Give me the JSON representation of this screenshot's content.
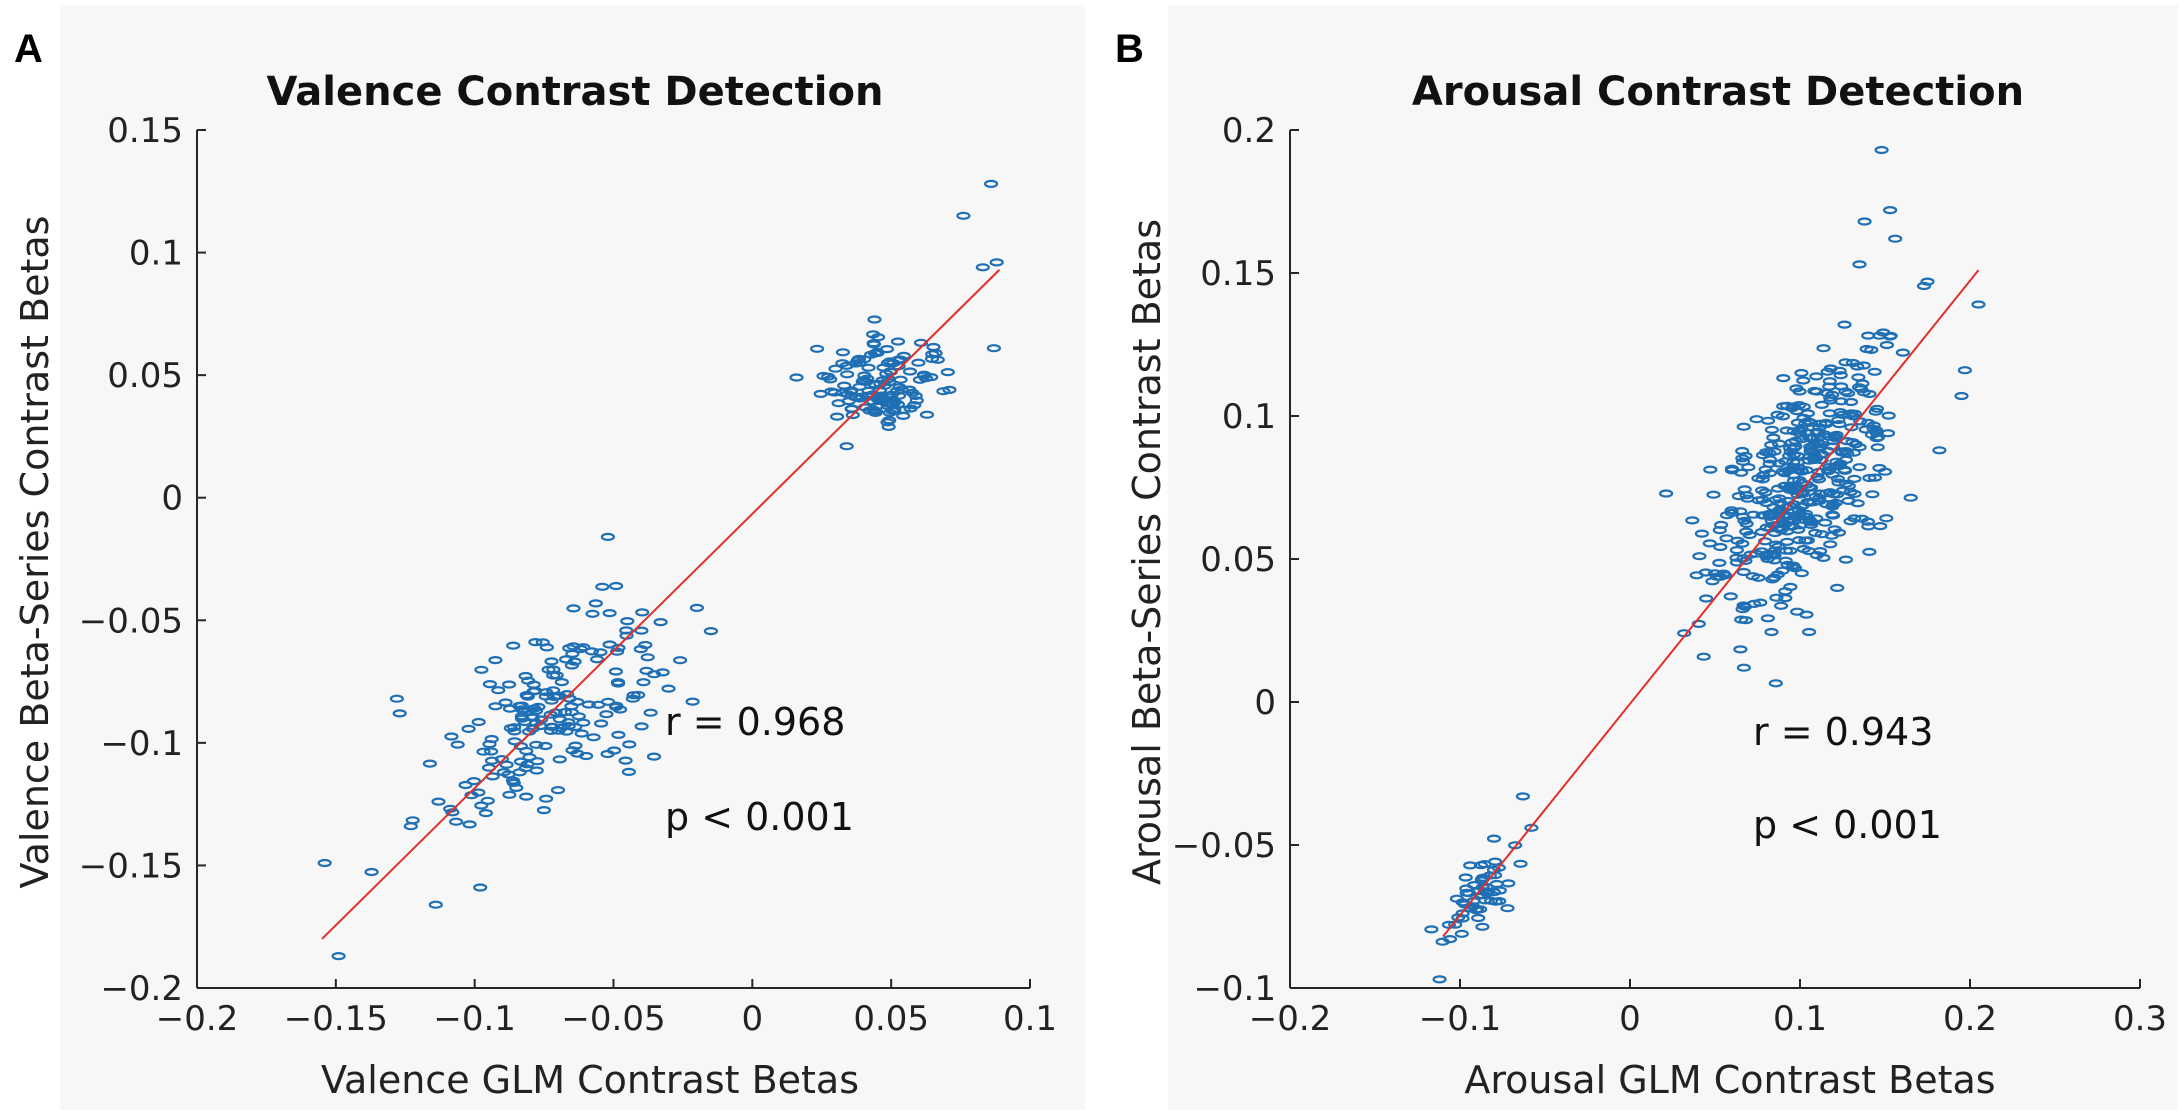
{
  "chart_data": [
    {
      "panel": "A",
      "type": "scatter",
      "title": "Valence Contrast Detection",
      "xlabel": "Valence GLM Contrast Betas",
      "ylabel": "Valence Beta-Series Contrast Betas",
      "xlim": [
        -0.2,
        0.1
      ],
      "ylim": [
        -0.2,
        0.15
      ],
      "xticks": [
        -0.2,
        -0.15,
        -0.1,
        -0.05,
        0,
        0.05,
        0.1
      ],
      "xtick_labels": [
        "−0.2",
        "−0.15",
        "−0.1",
        "−0.05",
        "0",
        "0.05",
        "0.1"
      ],
      "yticks": [
        -0.2,
        -0.15,
        -0.1,
        -0.05,
        0,
        0.05,
        0.1,
        0.15
      ],
      "ytick_labels": [
        "−0.2",
        "−0.15",
        "−0.1",
        "−0.05",
        "0",
        "0.05",
        "0.1",
        "0.15"
      ],
      "r_text": "r = 0.968",
      "p_text": "p < 0.001",
      "fit_line": {
        "x": [
          -0.155,
          0.089
        ],
        "y": [
          -0.18,
          0.093
        ]
      },
      "clusters": [
        {
          "n": 190,
          "cx": -0.073,
          "cy": -0.088,
          "spread_main": 0.026,
          "spread_perp": 0.013,
          "slope": 1.12
        },
        {
          "n": 130,
          "cx": 0.047,
          "cy": 0.047,
          "spread_main": 0.01,
          "spread_perp": 0.009,
          "slope": 1.12
        }
      ],
      "points": [
        [
          -0.154,
          -0.149
        ],
        [
          -0.149,
          -0.187
        ],
        [
          -0.128,
          -0.082
        ],
        [
          -0.127,
          -0.088
        ],
        [
          -0.123,
          -0.134
        ],
        [
          -0.114,
          -0.166
        ],
        [
          -0.098,
          -0.159
        ],
        [
          -0.052,
          -0.016
        ],
        [
          -0.043,
          -0.082
        ],
        [
          0.086,
          0.128
        ],
        [
          0.076,
          0.115
        ],
        [
          0.088,
          0.096
        ],
        [
          0.087,
          0.061
        ],
        [
          0.083,
          0.094
        ],
        [
          0.071,
          0.044
        ],
        [
          0.034,
          0.021
        ],
        [
          0.066,
          0.059
        ],
        [
          0.038,
          0.056
        ]
      ]
    },
    {
      "panel": "B",
      "type": "scatter",
      "title": "Arousal Contrast Detection",
      "xlabel": "Arousal GLM Contrast Betas",
      "ylabel": "Arousal Beta-Series Contrast Betas",
      "xlim": [
        -0.2,
        0.3
      ],
      "ylim": [
        -0.1,
        0.2
      ],
      "xticks": [
        -0.2,
        -0.1,
        0,
        0.1,
        0.2,
        0.3
      ],
      "xtick_labels": [
        "−0.2",
        "−0.1",
        "0",
        "0.1",
        "0.2",
        "0.3"
      ],
      "yticks": [
        -0.1,
        -0.05,
        0,
        0.05,
        0.1,
        0.15,
        0.2
      ],
      "ytick_labels": [
        "−0.1",
        "−0.05",
        "0",
        "0.05",
        "0.1",
        "0.15",
        "0.2"
      ],
      "r_text": "r = 0.943",
      "p_text": "p < 0.001",
      "fit_line": {
        "x": [
          -0.11,
          0.205
        ],
        "y": [
          -0.082,
          0.151
        ]
      },
      "clusters": [
        {
          "n": 430,
          "cx": 0.102,
          "cy": 0.076,
          "spread_main": 0.03,
          "spread_perp": 0.016,
          "slope": 0.75
        },
        {
          "n": 55,
          "cx": -0.088,
          "cy": -0.068,
          "spread_main": 0.011,
          "spread_perp": 0.006,
          "slope": 0.75
        }
      ],
      "points": [
        [
          0.148,
          0.193
        ],
        [
          0.153,
          0.172
        ],
        [
          0.138,
          0.168
        ],
        [
          0.156,
          0.162
        ],
        [
          0.135,
          0.153
        ],
        [
          0.175,
          0.147
        ],
        [
          0.205,
          0.139
        ],
        [
          0.197,
          0.116
        ],
        [
          0.195,
          0.107
        ],
        [
          0.067,
          0.012
        ],
        [
          -0.112,
          -0.097
        ],
        [
          -0.063,
          -0.033
        ],
        [
          -0.058,
          -0.044
        ],
        [
          0.182,
          0.088
        ],
        [
          0.064,
          0.072
        ],
        [
          0.05,
          0.045
        ]
      ]
    }
  ]
}
